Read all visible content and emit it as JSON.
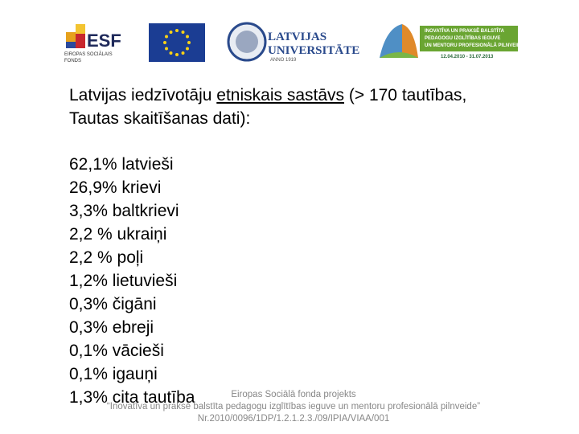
{
  "logos": {
    "esf": {
      "mark": "ESF",
      "caption_line1": "EIROPAS SOCIĀLAIS",
      "caption_line2": "FONDS"
    },
    "university": {
      "line1": "LATVIJAS",
      "line2": "UNIVERSITĀTE",
      "year": "ANNO 1919"
    },
    "project": {
      "line1": "INOVATĪVA UN PRAKSĒ BALSTĪTA",
      "line2": "PEDAGOGU IZGLĪTĪBAS IEGUVE",
      "line3": "UN MENTORU PROFESIONĀLĀ PILNVEIDE",
      "dates": "12.04.2010 - 31.07.2013"
    }
  },
  "heading": {
    "part1": "Latvijas iedzīvotāju ",
    "underlined": "etniskais sastāvs",
    "part2": " (> 170  tautības,",
    "line2": "Tautas skaitīšanas dati):"
  },
  "list": [
    "62,1% latvieši",
    "26,9% krievi",
    "3,3% baltkrievi",
    "2,2 % ukraiņi",
    "2,2 % poļi",
    "1,2% lietuvieši",
    "0,3% čigāni",
    "0,3% ebreji",
    "0,1% vācieši",
    "0,1% igauņi",
    "1,3% cita tautība"
  ],
  "footer": {
    "line1": "Eiropas Sociālā fonda projekts",
    "line2": "“Inovatīva un praksē balstīta pedagogu izglītības ieguve un mentoru profesionālā pilnveide”",
    "line3": "Nr.2010/0096/1DP/1.2.1.2.3./09/IPIA/VIAA/001"
  }
}
